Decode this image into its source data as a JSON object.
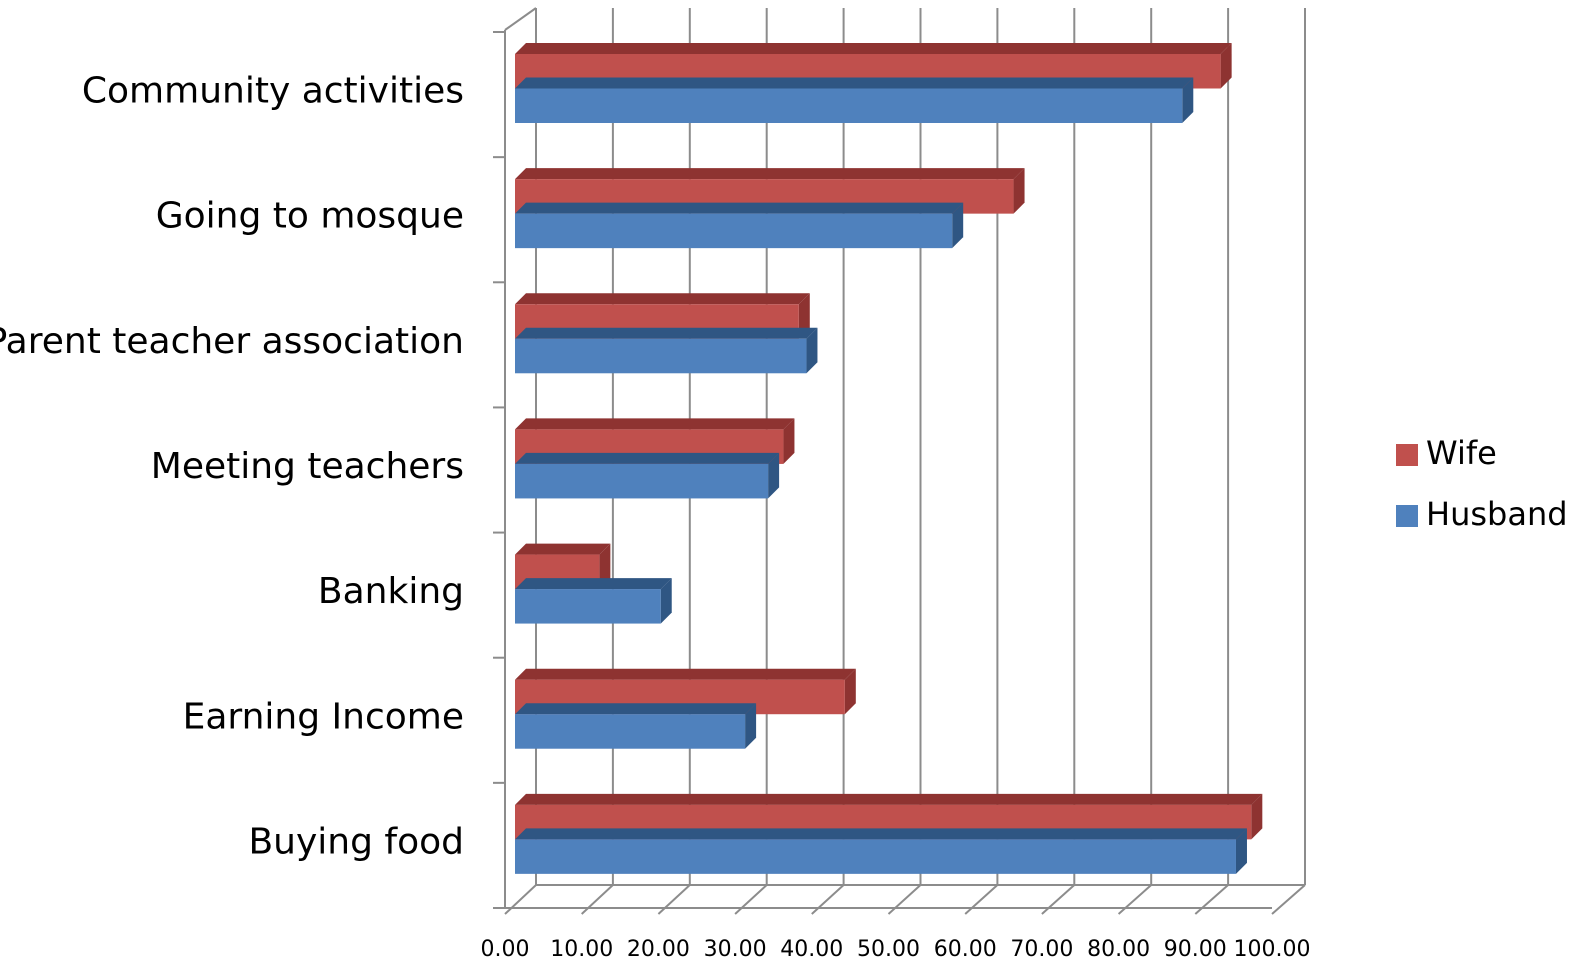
{
  "chart_data": {
    "type": "bar3d_horizontal",
    "categories": [
      "Community activities",
      "Going to mosque",
      "Parent teacher association",
      "Meeting teachers",
      "Banking",
      "Earning Income",
      "Buying food"
    ],
    "series": [
      {
        "name": "Wife",
        "color": "#c0504d",
        "values": [
          92,
          65,
          37,
          35,
          11,
          43,
          96
        ]
      },
      {
        "name": "Husband",
        "color": "#4f81bd",
        "values": [
          87,
          57,
          38,
          33,
          19,
          30,
          94
        ]
      }
    ],
    "xlim": [
      0,
      100
    ],
    "xticks": [
      {
        "value": 0,
        "label": "0.00"
      },
      {
        "value": 10,
        "label": "10.00"
      },
      {
        "value": 20,
        "label": "20.00"
      },
      {
        "value": 30,
        "label": "30.00"
      },
      {
        "value": 40,
        "label": "40.00"
      },
      {
        "value": 50,
        "label": "50.00"
      },
      {
        "value": 60,
        "label": "60.00"
      },
      {
        "value": 70,
        "label": "70.00"
      },
      {
        "value": 80,
        "label": "80.00"
      },
      {
        "value": 90,
        "label": "90.00"
      },
      {
        "value": 100,
        "label": "100.00"
      }
    ],
    "grid": true,
    "legend": "right"
  }
}
